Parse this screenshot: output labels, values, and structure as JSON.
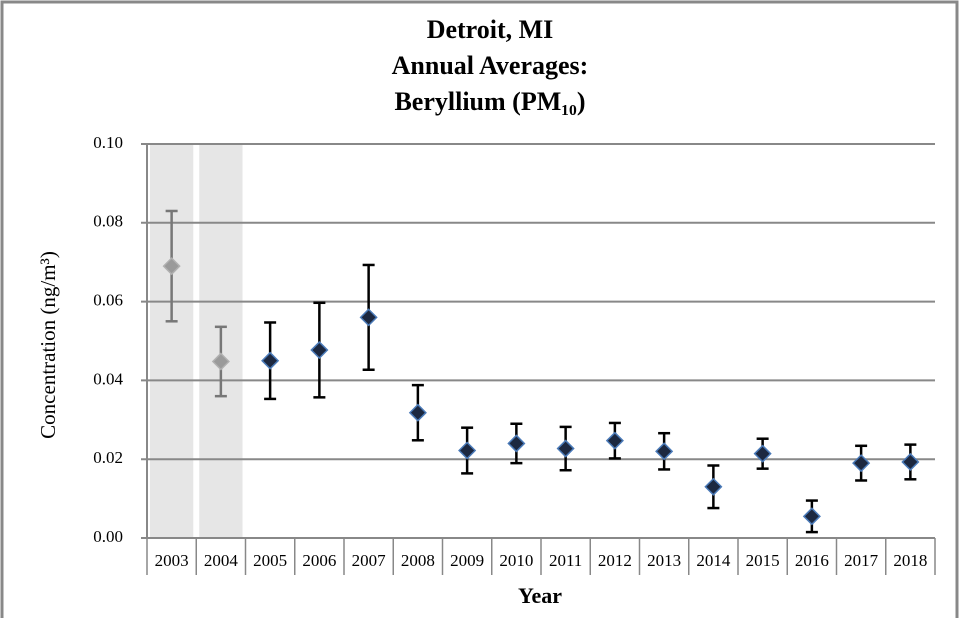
{
  "chart_data": {
    "type": "errorbar-scatter",
    "title": [
      "Detroit, MI",
      "Annual Averages:",
      "Beryllium (PM₁₀)"
    ],
    "x_label": "Year",
    "y_label": "Concentration (ng/m³)",
    "categories": [
      "2003",
      "2004",
      "2005",
      "2006",
      "2007",
      "2008",
      "2009",
      "2010",
      "2011",
      "2012",
      "2013",
      "2014",
      "2015",
      "2016",
      "2017",
      "2018"
    ],
    "values": [
      0.069,
      0.0448,
      0.045,
      0.0477,
      0.056,
      0.0318,
      0.0222,
      0.024,
      0.0227,
      0.0247,
      0.022,
      0.013,
      0.0214,
      0.0055,
      0.019,
      0.0193
    ],
    "errors": [
      0.014,
      0.0088,
      0.0097,
      0.012,
      0.0133,
      0.007,
      0.0058,
      0.005,
      0.0055,
      0.0045,
      0.0046,
      0.0054,
      0.0038,
      0.004,
      0.0044,
      0.0044
    ],
    "colors": [
      "#9a9a9a",
      "#9a9a9a",
      "#1c2840",
      "#1c2840",
      "#1c2840",
      "#1c2840",
      "#1c2840",
      "#1c2840",
      "#1c2840",
      "#1c2840",
      "#1c2840",
      "#1c2840",
      "#1c2840",
      "#1c2840",
      "#1c2840",
      "#1c2840"
    ],
    "shaded_categories": [
      "2003",
      "2004"
    ],
    "ylim": [
      0,
      0.1
    ],
    "yticks": [
      {
        "value": 0,
        "label": "0.00"
      },
      {
        "value": 0.02,
        "label": "0.02"
      },
      {
        "value": 0.04,
        "label": "0.04"
      },
      {
        "value": 0.06,
        "label": "0.06"
      },
      {
        "value": 0.08,
        "label": "0.08"
      },
      {
        "value": 0.1,
        "label": "0.10"
      }
    ],
    "grid": true
  }
}
